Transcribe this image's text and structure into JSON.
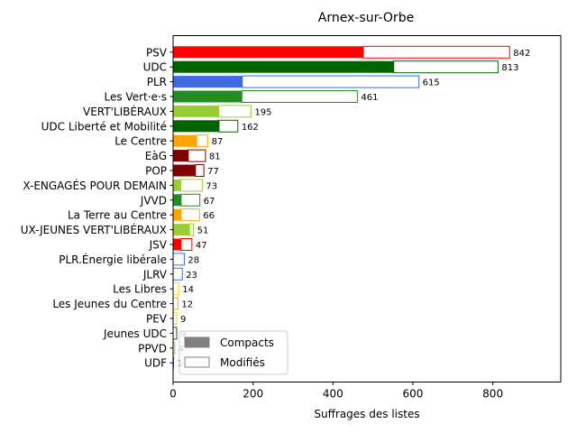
{
  "chart_data": {
    "type": "bar",
    "orientation": "horizontal",
    "title": "Arnex-sur-Orbe",
    "xlabel": "Suffrages des listes",
    "ylabel": "",
    "xlim": [
      0,
      970
    ],
    "xticks": [
      0,
      200,
      400,
      600,
      800
    ],
    "grid": false,
    "legend_position": "lower-left",
    "legend": [
      {
        "label": "Compacts",
        "style": "filled",
        "color": "#808080"
      },
      {
        "label": "Modifiés",
        "style": "outline",
        "color": "#808080"
      }
    ],
    "categories": [
      "PSV",
      "UDC",
      "PLR",
      "Les Vert·e·s",
      "VERT'LIBÉRAUX",
      "UDC Liberté et Mobilité",
      "Le Centre",
      "EàG",
      "POP",
      "X-ENGAGÉS POUR DEMAIN",
      "JVVD",
      "La Terre au Centre",
      "UX-JEUNES VERT'LIBÉRAUX",
      "JSV",
      "PLR.Énergie libérale",
      "JLRV",
      "Les Libres",
      "Les Jeunes du Centre",
      "PEV",
      "Jeunes UDC",
      "PPVD",
      "UDF"
    ],
    "series": [
      {
        "name": "Compacts",
        "values": [
          476,
          552,
          173,
          172,
          114,
          115,
          59,
          38,
          56,
          19,
          20,
          20,
          41,
          20,
          0,
          0,
          0,
          0,
          0,
          0,
          0,
          0
        ]
      },
      {
        "name": "Modifiés",
        "values": [
          366,
          261,
          442,
          289,
          81,
          47,
          28,
          43,
          21,
          54,
          47,
          46,
          10,
          27,
          28,
          23,
          14,
          12,
          9,
          9,
          4,
          1
        ]
      }
    ],
    "totals": [
      "842",
      "813",
      "615",
      "461",
      "195",
      "162",
      "87",
      "81",
      "77",
      "73",
      "67",
      "66",
      "51",
      "47",
      "28",
      "23",
      "14",
      "12",
      "9",
      "9",
      "4",
      "1"
    ],
    "colors": [
      "#ff0000",
      "#006400",
      "#4169e1",
      "#228b22",
      "#9acd32",
      "#006400",
      "#ffa500",
      "#800000",
      "#800000",
      "#9acd32",
      "#228b22",
      "#ffa500",
      "#9acd32",
      "#ff0000",
      "#4169e1",
      "#4169e1",
      "#ffd700",
      "#ffa500",
      "#ffd700",
      "#006400",
      "#9acd32",
      "#4169e1"
    ]
  }
}
